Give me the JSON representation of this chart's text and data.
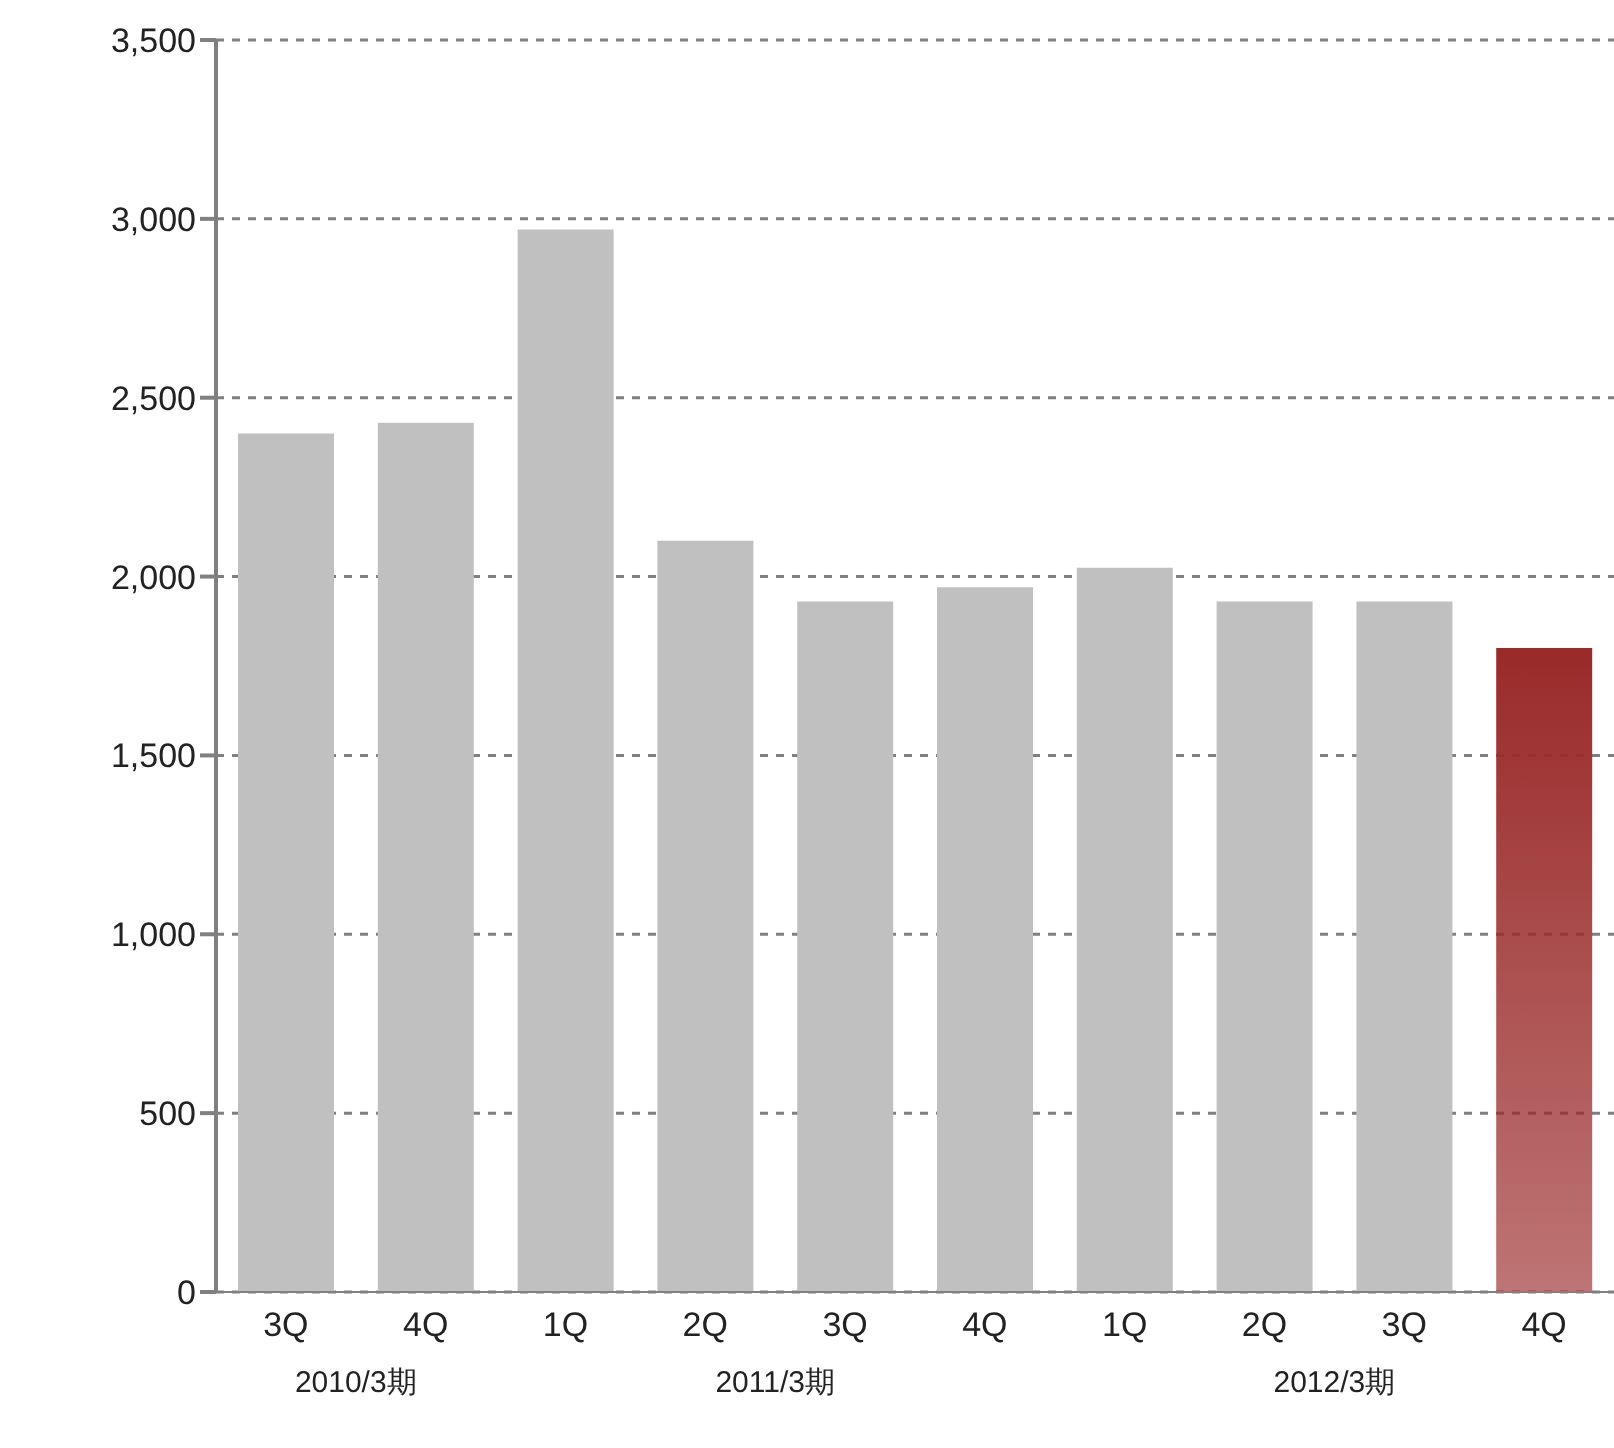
{
  "chart_data": {
    "type": "bar",
    "categories": [
      "3Q",
      "4Q",
      "1Q",
      "2Q",
      "3Q",
      "4Q",
      "1Q",
      "2Q",
      "3Q",
      "4Q"
    ],
    "values": [
      2400,
      2430,
      2970,
      2100,
      1930,
      1970,
      2025,
      1930,
      1930,
      1800
    ],
    "colors": [
      "#c0c0c0",
      "#c0c0c0",
      "#c0c0c0",
      "#c0c0c0",
      "#c0c0c0",
      "#c0c0c0",
      "#c0c0c0",
      "#c0c0c0",
      "#c0c0c0",
      "#9a2a2a"
    ],
    "ylim": [
      0,
      3500
    ],
    "yticks": [
      0,
      500,
      {
        "value": 1000,
        "label": "1,000"
      },
      {
        "value": 1500,
        "label": "1,500"
      },
      {
        "value": 2000,
        "label": "2,000"
      },
      {
        "value": 2500,
        "label": "2,500"
      },
      {
        "value": 3000,
        "label": "3,000"
      },
      {
        "value": 3500,
        "label": "3,500"
      }
    ],
    "grid": "y",
    "annotations": [
      "2010/3期",
      "2011/3期",
      "2012/3期"
    ]
  }
}
